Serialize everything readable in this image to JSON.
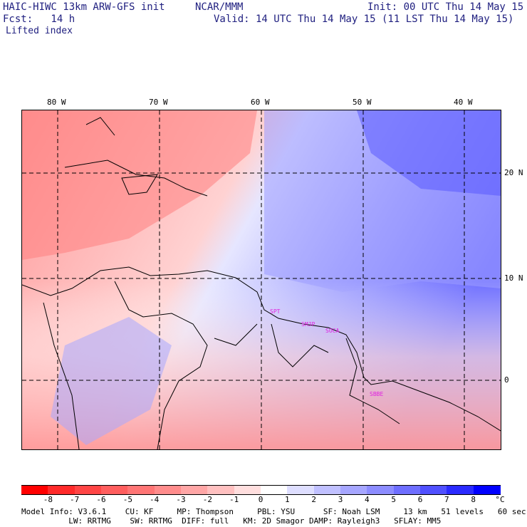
{
  "header": {
    "model_title": "HAIC-HIWC 13km ARW-GFS init",
    "org": "NCAR/MMM",
    "init": "Init: 00 UTC Thu 14 May 15",
    "fcst": "Fcst:   14 h",
    "valid": "Valid: 14 UTC Thu 14 May 15 (11 LST Thu 14 May 15)",
    "field": "Lifted index"
  },
  "map": {
    "lon_labels": [
      "80 W",
      "70 W",
      "60 W",
      "50 W",
      "40 W"
    ],
    "lat_labels": [
      "20 N",
      "10 N",
      "0"
    ],
    "stations": [
      "SPT",
      "SMJP",
      "SOCA",
      "SBBE"
    ]
  },
  "colorbar": {
    "tick_labels": [
      "-8",
      "-7",
      "-6",
      "-5",
      "-4",
      "-3",
      "-2",
      "-1",
      "0",
      "1",
      "2",
      "3",
      "4",
      "5",
      "6",
      "7",
      "8"
    ],
    "unit": "°C",
    "colors": [
      "#ff0000",
      "#ff2a2a",
      "#ff4545",
      "#ff5e5e",
      "#ff7575",
      "#ff8c8c",
      "#ffa6a6",
      "#ffc0c0",
      "#ffdede",
      "#ffffff",
      "#dedeff",
      "#c0c0ff",
      "#a6a6ff",
      "#8c8cff",
      "#6e6eff",
      "#5050ff",
      "#2a2aff",
      "#0000ff"
    ]
  },
  "footer": {
    "line1": "Model Info: V3.6.1    CU: KF     MP: Thompson     PBL: YSU      SF: Noah LSM     13 km   51 levels   60 sec",
    "line2": "          LW: RRTMG    SW: RRTMG  DIFF: full   KM: 2D Smagor DAMP: Rayleigh3   SFLAY: MM5"
  }
}
